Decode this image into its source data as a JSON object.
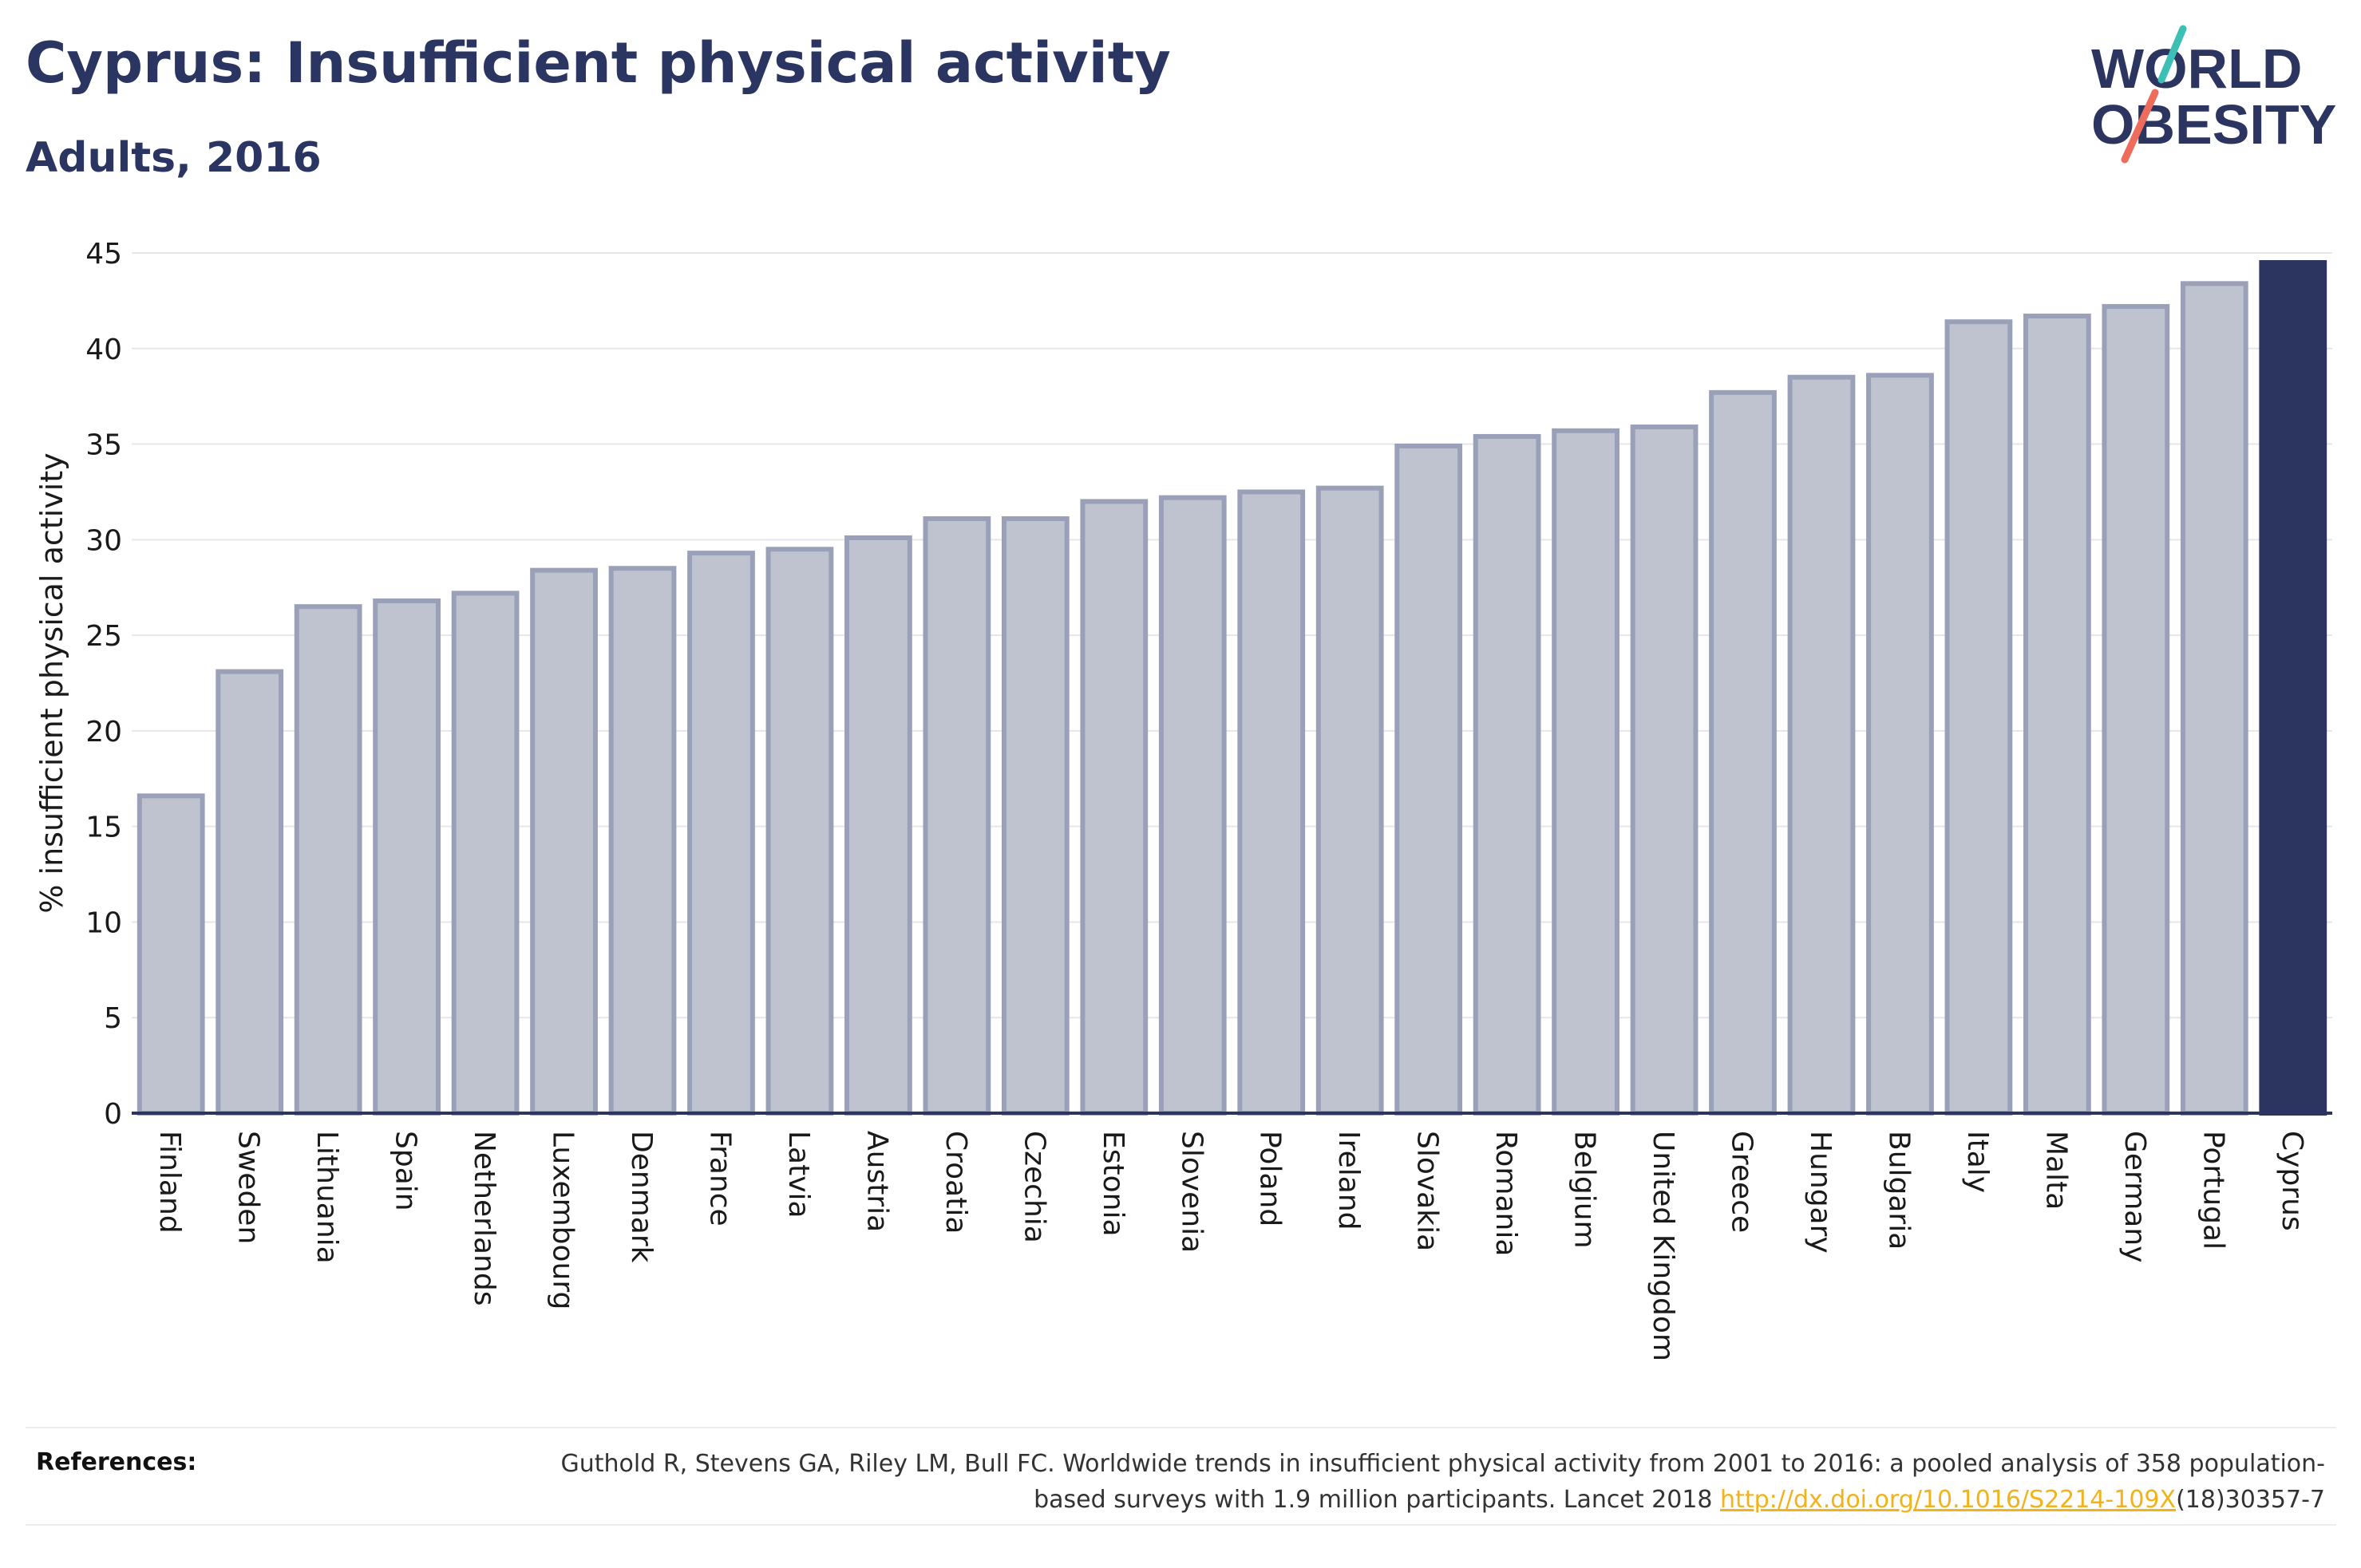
{
  "header": {
    "title": "Cyprus: Insufficient physical activity",
    "subtitle": "Adults, 2016",
    "logo_line1": "WORLD",
    "logo_line2": "OBESITY"
  },
  "colors": {
    "bar_fill": "#bfc3d0",
    "bar_stroke": "#9aa0b8",
    "highlight": "#2c3560",
    "logo_teal": "#3cbfb4",
    "logo_coral": "#ef6b5b"
  },
  "chart_data": {
    "type": "bar",
    "title": "Cyprus: Insufficient physical activity",
    "subtitle": "Adults, 2016",
    "ylabel": "% insufficient physical activity",
    "xlabel": "",
    "ylim": [
      0,
      45
    ],
    "yticks": [
      0,
      5,
      10,
      15,
      20,
      25,
      30,
      35,
      40,
      45
    ],
    "grid": true,
    "highlight": "Cyprus",
    "categories": [
      "Finland",
      "Sweden",
      "Lithuania",
      "Spain",
      "Netherlands",
      "Luxembourg",
      "Denmark",
      "France",
      "Latvia",
      "Austria",
      "Croatia",
      "Czechia",
      "Estonia",
      "Slovenia",
      "Poland",
      "Ireland",
      "Slovakia",
      "Romania",
      "Belgium",
      "United Kingdom",
      "Greece",
      "Hungary",
      "Bulgaria",
      "Italy",
      "Malta",
      "Germany",
      "Portugal",
      "Cyprus"
    ],
    "values": [
      16.6,
      23.1,
      26.5,
      26.8,
      27.2,
      28.4,
      28.5,
      29.3,
      29.5,
      30.1,
      31.1,
      31.1,
      32.0,
      32.2,
      32.5,
      32.7,
      34.9,
      35.4,
      35.7,
      35.9,
      37.7,
      38.5,
      38.6,
      41.4,
      41.7,
      42.2,
      43.4,
      44.5
    ]
  },
  "references": {
    "label": "References:",
    "text_before": "Guthold R, Stevens GA, Riley LM, Bull FC. Worldwide trends in insufficient physical activity from 2001 to 2016: a pooled analysis of 358 population-based surveys with 1.9 million participants. Lancet 2018 ",
    "link": "http://dx.doi.org/10.1016/S2214-109X",
    "text_after": "(18)30357-7"
  }
}
